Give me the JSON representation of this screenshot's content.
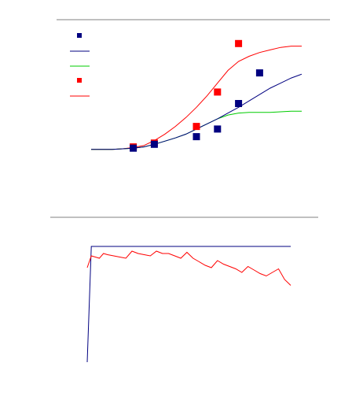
{
  "chart_data": [
    {
      "type": "line",
      "title": "",
      "xlabel": "",
      "ylabel": "",
      "xlim": [
        0,
        10
      ],
      "ylim": [
        0,
        100
      ],
      "x_curve": [
        0,
        0.5,
        1,
        1.5,
        2,
        2.5,
        3,
        3.5,
        4,
        4.5,
        5,
        5.5,
        6,
        6.5,
        7,
        7.5,
        8,
        8.5,
        9,
        9.5,
        10
      ],
      "series": [
        {
          "kind": "line",
          "color": "#ff0000",
          "values": [
            10,
            10,
            10,
            10.5,
            11.5,
            13,
            17,
            22,
            28,
            35,
            43,
            52,
            62,
            72,
            79,
            83,
            86,
            88,
            90,
            91,
            91
          ]
        },
        {
          "kind": "line",
          "color": "#00cc00",
          "values": [
            10,
            10,
            10,
            10.5,
            11,
            12,
            14,
            16.5,
            19,
            22,
            26,
            30,
            34,
            37,
            38.5,
            39,
            39,
            39,
            39.5,
            40,
            40
          ]
        },
        {
          "kind": "line",
          "color": "#000080",
          "values": [
            10,
            10,
            10,
            10.5,
            11,
            12,
            14,
            16.5,
            19,
            22,
            26,
            30,
            34,
            38.5,
            43,
            48,
            53,
            58,
            62,
            66,
            69
          ]
        },
        {
          "kind": "markers",
          "color": "#ff0000",
          "x": [
            2,
            3,
            5,
            6,
            7
          ],
          "values": [
            12,
            15,
            28,
            55,
            93
          ]
        },
        {
          "kind": "markers",
          "color": "#000080",
          "x": [
            2,
            3,
            5,
            6,
            7,
            8
          ],
          "values": [
            11,
            14,
            20,
            26,
            46,
            70
          ]
        }
      ],
      "grid": false
    },
    {
      "type": "line",
      "title": "",
      "xlabel": "",
      "ylabel": "",
      "xlim": [
        0,
        10
      ],
      "ylim": [
        0,
        100
      ],
      "series": [
        {
          "kind": "line",
          "color": "#000080",
          "x": [
            0,
            0.2,
            10
          ],
          "values": [
            0,
            98,
            98
          ]
        },
        {
          "kind": "line",
          "color": "#ff0000",
          "x": [
            0,
            0.2,
            0.4,
            0.6,
            0.8,
            1.0,
            1.3,
            1.6,
            1.9,
            2.2,
            2.5,
            2.8,
            3.1,
            3.4,
            3.7,
            4.0,
            4.3,
            4.6,
            4.9,
            5.2,
            5.5,
            5.8,
            6.1,
            6.4,
            6.7,
            7.0,
            7.3,
            7.6,
            7.9,
            8.2,
            8.5,
            8.8,
            9.1,
            9.4,
            9.7,
            10
          ],
          "values": [
            80,
            90,
            89,
            88,
            92,
            91,
            90,
            89,
            88,
            94,
            92,
            91,
            90,
            94,
            92,
            92,
            90,
            88,
            93,
            88,
            85,
            82,
            80,
            86,
            83,
            81,
            79,
            76,
            81,
            78,
            75,
            73,
            76,
            79,
            70,
            65
          ]
        }
      ],
      "grid": false
    }
  ]
}
